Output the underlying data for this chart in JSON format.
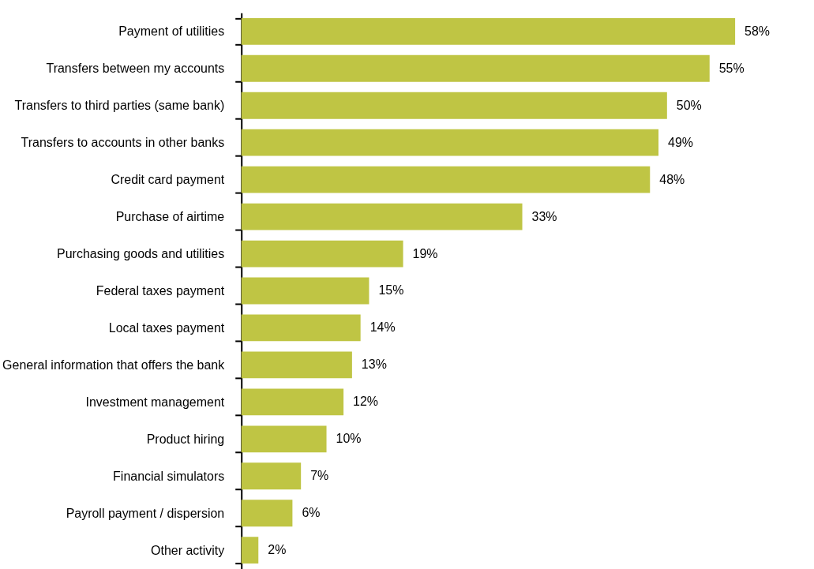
{
  "chart_data": {
    "type": "bar",
    "orientation": "horizontal",
    "categories": [
      "Payment of utilities",
      "Transfers between my accounts",
      "Transfers to third parties (same bank)",
      "Transfers to accounts in other banks",
      "Credit card payment",
      "Purchase of airtime",
      "Purchasing goods and utilities",
      "Federal taxes payment",
      "Local taxes payment",
      "General information that offers the bank",
      "Investment management",
      "Product hiring",
      "Financial simulators",
      "Payroll payment / dispersion",
      "Other activity"
    ],
    "values": [
      58,
      55,
      50,
      49,
      48,
      33,
      19,
      15,
      14,
      13,
      12,
      10,
      7,
      6,
      2
    ],
    "value_labels": [
      "58%",
      "55%",
      "50%",
      "49%",
      "48%",
      "33%",
      "19%",
      "15%",
      "14%",
      "13%",
      "12%",
      "10%",
      "7%",
      "6%",
      "2%"
    ],
    "color": "#bfc544",
    "grid": false
  }
}
